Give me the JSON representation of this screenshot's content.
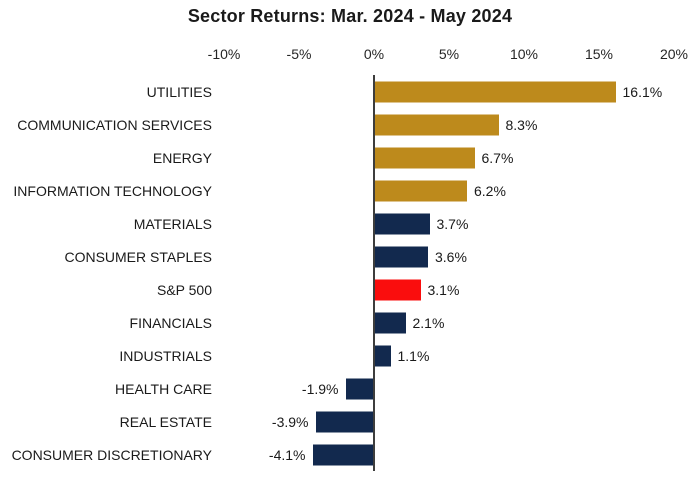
{
  "chart_data": {
    "type": "bar",
    "orientation": "horizontal",
    "title": "Sector Returns: Mar. 2024 - May 2024",
    "x_axis": {
      "tick_labels": [
        "-10%",
        "-5%",
        "0%",
        "5%",
        "10%",
        "15%",
        "20%"
      ],
      "tick_values": [
        -10,
        -5,
        0,
        5,
        10,
        15,
        20
      ],
      "range": [
        -10,
        20
      ],
      "unit": "%"
    },
    "grid": "off",
    "legend": "none",
    "highlight_category": "S&P 500",
    "bars": [
      {
        "category": "UTILITIES",
        "value": 16.1,
        "label": "16.1%",
        "color": "gold"
      },
      {
        "category": "COMMUNICATION SERVICES",
        "value": 8.3,
        "label": "8.3%",
        "color": "gold"
      },
      {
        "category": "ENERGY",
        "value": 6.7,
        "label": "6.7%",
        "color": "gold"
      },
      {
        "category": "INFORMATION TECHNOLOGY",
        "value": 6.2,
        "label": "6.2%",
        "color": "gold"
      },
      {
        "category": "MATERIALS",
        "value": 3.7,
        "label": "3.7%",
        "color": "navy"
      },
      {
        "category": "CONSUMER STAPLES",
        "value": 3.6,
        "label": "3.6%",
        "color": "navy"
      },
      {
        "category": "S&P 500",
        "value": 3.1,
        "label": "3.1%",
        "color": "red"
      },
      {
        "category": "FINANCIALS",
        "value": 2.1,
        "label": "2.1%",
        "color": "navy"
      },
      {
        "category": "INDUSTRIALS",
        "value": 1.1,
        "label": "1.1%",
        "color": "navy"
      },
      {
        "category": "HEALTH CARE",
        "value": -1.9,
        "label": "-1.9%",
        "color": "navy"
      },
      {
        "category": "REAL ESTATE",
        "value": -3.9,
        "label": "-3.9%",
        "color": "navy"
      },
      {
        "category": "CONSUMER DISCRETIONARY",
        "value": -4.1,
        "label": "-4.1%",
        "color": "navy"
      }
    ],
    "colors": {
      "gold": "#BD8A1C",
      "navy": "#12294E",
      "red": "#FA0D0D",
      "axis_line": "#3d3d3d",
      "text": "#1a1a1a"
    }
  }
}
